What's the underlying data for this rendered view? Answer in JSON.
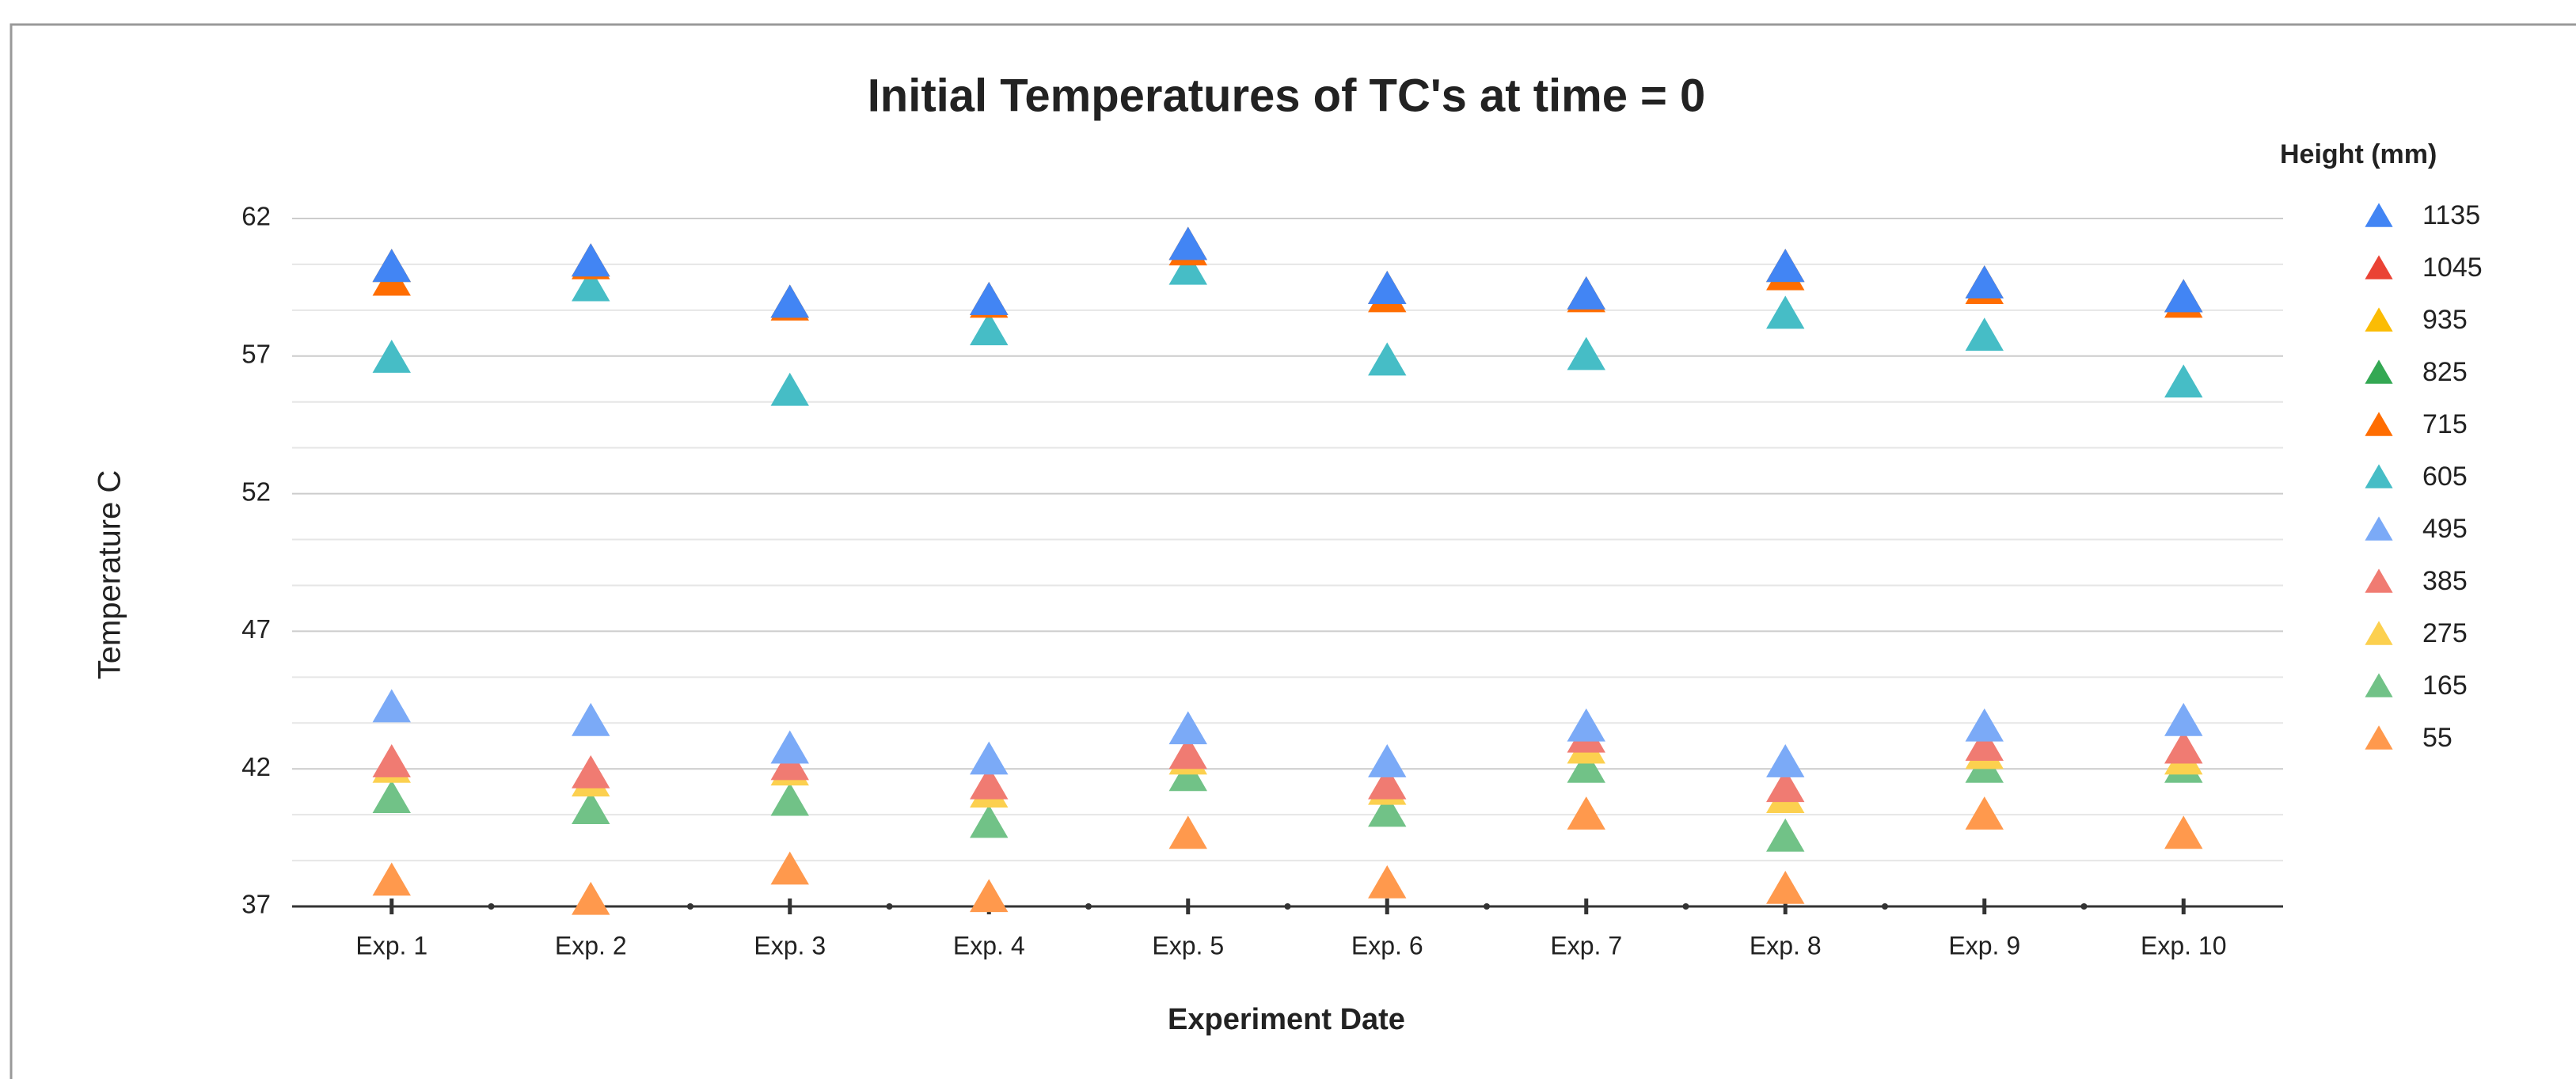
{
  "chart_data": {
    "type": "scatter",
    "title": "Initial Temperatures of TC's at time = 0",
    "x_label": "Experiment Date",
    "y_label": "Temperature C",
    "legend_title": "Height (mm)",
    "legend": "right",
    "grid": true,
    "marker": "triangle",
    "categories": [
      "Exp. 1",
      "Exp. 2",
      "Exp. 3",
      "Exp. 4",
      "Exp. 5",
      "Exp. 6",
      "Exp. 7",
      "Exp. 8",
      "Exp. 9",
      "Exp. 10"
    ],
    "ylim": [
      37,
      62
    ],
    "yticks": [
      37,
      42,
      47,
      52,
      57,
      62
    ],
    "series": [
      {
        "name": "1135",
        "color": "#4285f4",
        "values": [
          60.2,
          60.4,
          58.9,
          59.0,
          61.0,
          59.4,
          59.2,
          60.2,
          59.6,
          59.1
        ]
      },
      {
        "name": "1045",
        "color": "#ea4335",
        "values": [
          60.2,
          60.4,
          58.9,
          59.0,
          61.0,
          59.4,
          59.2,
          60.2,
          59.6,
          59.1
        ]
      },
      {
        "name": "935",
        "color": "#fbbc04",
        "values": [
          60.2,
          60.4,
          58.9,
          59.0,
          61.0,
          59.4,
          59.2,
          60.2,
          59.6,
          59.1
        ]
      },
      {
        "name": "825",
        "color": "#34a853",
        "values": [
          60.2,
          60.4,
          58.9,
          59.0,
          61.0,
          59.4,
          59.2,
          60.2,
          59.6,
          59.1
        ]
      },
      {
        "name": "715",
        "color": "#ff6d01",
        "values": [
          59.7,
          60.3,
          58.8,
          58.9,
          60.8,
          59.1,
          59.1,
          59.9,
          59.4,
          58.9
        ]
      },
      {
        "name": "605",
        "color": "#46bdc6",
        "values": [
          56.9,
          59.5,
          55.7,
          57.9,
          60.1,
          56.8,
          57.0,
          58.5,
          57.7,
          56.0
        ]
      },
      {
        "name": "495",
        "color": "#7baaf7",
        "values": [
          44.2,
          43.7,
          42.7,
          42.3,
          43.4,
          42.2,
          43.5,
          42.2,
          43.5,
          43.7
        ]
      },
      {
        "name": "385",
        "color": "#f07b72",
        "values": [
          42.2,
          41.8,
          42.1,
          41.4,
          42.5,
          41.4,
          43.1,
          41.3,
          42.8,
          42.7
        ]
      },
      {
        "name": "275",
        "color": "#fcd04f",
        "values": [
          42.0,
          41.5,
          41.9,
          41.1,
          42.3,
          41.2,
          42.7,
          40.9,
          42.5,
          42.3
        ]
      },
      {
        "name": "165",
        "color": "#71c287",
        "values": [
          40.9,
          40.5,
          40.8,
          40.0,
          41.7,
          40.4,
          42.0,
          39.5,
          42.0,
          42.0
        ]
      },
      {
        "name": "55",
        "color": "#ff994d",
        "values": [
          37.9,
          37.2,
          38.3,
          37.3,
          39.6,
          37.8,
          40.3,
          37.6,
          40.3,
          39.6
        ]
      }
    ]
  }
}
